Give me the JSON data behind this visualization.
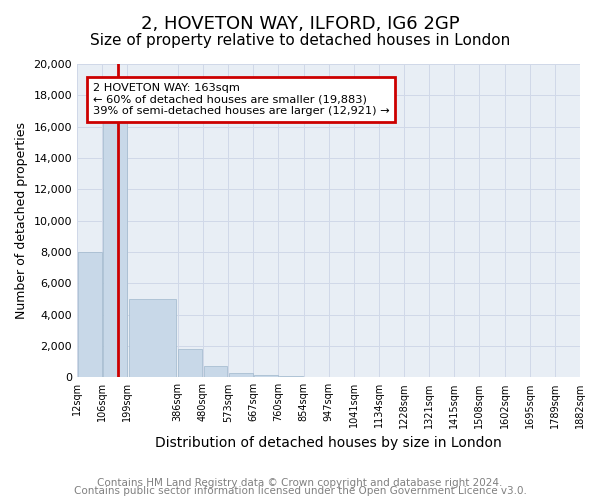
{
  "title": "2, HOVETON WAY, ILFORD, IG6 2GP",
  "subtitle": "Size of property relative to detached houses in London",
  "xlabel": "Distribution of detached houses by size in London",
  "ylabel": "Number of detached properties",
  "footnote1": "Contains HM Land Registry data © Crown copyright and database right 2024.",
  "footnote2": "Contains public sector information licensed under the Open Government Licence v3.0.",
  "property_size": 163,
  "property_label": "2 HOVETON WAY: 163sqm",
  "annotation_line1": "← 60% of detached houses are smaller (19,883)",
  "annotation_line2": "39% of semi-detached houses are larger (12,921) →",
  "bin_edges": [
    12,
    106,
    199,
    386,
    480,
    573,
    667,
    760,
    854,
    947,
    1041,
    1134,
    1228,
    1321,
    1415,
    1508,
    1602,
    1695,
    1789,
    1882
  ],
  "bin_labels": [
    "12sqm",
    "106sqm",
    "199sqm",
    "386sqm",
    "480sqm",
    "573sqm",
    "667sqm",
    "760sqm",
    "854sqm",
    "947sqm",
    "1041sqm",
    "1134sqm",
    "1228sqm",
    "1321sqm",
    "1415sqm",
    "1508sqm",
    "1602sqm",
    "1695sqm",
    "1789sqm",
    "1882sqm"
  ],
  "bar_heights": [
    8000,
    16500,
    5000,
    1800,
    700,
    300,
    150,
    80,
    50,
    30,
    20,
    15,
    10,
    8,
    6,
    4,
    3,
    2,
    1
  ],
  "bar_color": "#c8d8e8",
  "bar_edge_color": "#a0b8cc",
  "vline_color": "#cc0000",
  "vline_x": 163,
  "annotation_box_color": "#cc0000",
  "ylim": [
    0,
    20000
  ],
  "yticks": [
    0,
    2000,
    4000,
    6000,
    8000,
    10000,
    12000,
    14000,
    16000,
    18000,
    20000
  ],
  "grid_color": "#d0d8e8",
  "bg_color": "#e8eef5",
  "title_fontsize": 13,
  "subtitle_fontsize": 11,
  "axis_fontsize": 9,
  "tick_fontsize": 8,
  "footnote_fontsize": 7.5
}
